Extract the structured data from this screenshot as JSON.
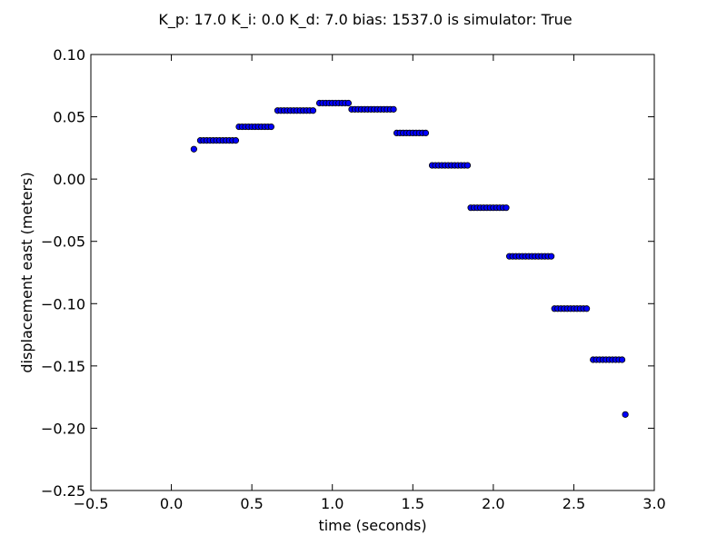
{
  "chart_data": {
    "type": "scatter",
    "title": "K_p: 17.0 K_i: 0.0 K_d: 7.0 bias: 1537.0 is simulator: True",
    "xlabel": "time (seconds)",
    "ylabel": "displacement east (meters)",
    "xlim": [
      -0.5,
      3.0
    ],
    "ylim": [
      -0.25,
      0.1
    ],
    "xticks": [
      -0.5,
      0.0,
      0.5,
      1.0,
      1.5,
      2.0,
      2.5,
      3.0
    ],
    "xtick_labels": [
      "−0.5",
      "0.0",
      "0.5",
      "1.0",
      "1.5",
      "2.0",
      "2.5",
      "3.0"
    ],
    "yticks": [
      -0.25,
      -0.2,
      -0.15,
      -0.1,
      -0.05,
      0.0,
      0.05,
      0.1
    ],
    "ytick_labels": [
      "−0.25",
      "−0.20",
      "−0.15",
      "−0.10",
      "−0.05",
      "0.00",
      "0.05",
      "0.10"
    ],
    "grid": false,
    "marker_color": "#0000ff",
    "marker_edge_color": "#000000",
    "series": [
      {
        "x": [
          0.14,
          0.18,
          0.2,
          0.22,
          0.24,
          0.26,
          0.28,
          0.3,
          0.32,
          0.34,
          0.36,
          0.38,
          0.4,
          0.42,
          0.44,
          0.46,
          0.48,
          0.5,
          0.52,
          0.54,
          0.56,
          0.58,
          0.6,
          0.62,
          0.66,
          0.68,
          0.7,
          0.72,
          0.74,
          0.76,
          0.78,
          0.8,
          0.82,
          0.84,
          0.86,
          0.88,
          0.92,
          0.94,
          0.96,
          0.98,
          1.0,
          1.02,
          1.04,
          1.06,
          1.08,
          1.1,
          1.12,
          1.14,
          1.16,
          1.18,
          1.2,
          1.22,
          1.24,
          1.26,
          1.28,
          1.3,
          1.32,
          1.34,
          1.36,
          1.38,
          1.4,
          1.42,
          1.44,
          1.46,
          1.48,
          1.5,
          1.52,
          1.54,
          1.56,
          1.58,
          1.62,
          1.64,
          1.66,
          1.68,
          1.7,
          1.72,
          1.74,
          1.76,
          1.78,
          1.8,
          1.82,
          1.84,
          1.86,
          1.88,
          1.9,
          1.92,
          1.94,
          1.96,
          1.98,
          2.0,
          2.02,
          2.04,
          2.06,
          2.08,
          2.1,
          2.12,
          2.14,
          2.16,
          2.18,
          2.2,
          2.22,
          2.24,
          2.26,
          2.28,
          2.3,
          2.32,
          2.34,
          2.36,
          2.38,
          2.4,
          2.42,
          2.44,
          2.46,
          2.48,
          2.5,
          2.52,
          2.54,
          2.56,
          2.58,
          2.62,
          2.64,
          2.66,
          2.68,
          2.7,
          2.72,
          2.74,
          2.76,
          2.78,
          2.8,
          2.82
        ],
        "y": [
          0.024,
          0.031,
          0.031,
          0.031,
          0.031,
          0.031,
          0.031,
          0.031,
          0.031,
          0.031,
          0.031,
          0.031,
          0.031,
          0.042,
          0.042,
          0.042,
          0.042,
          0.042,
          0.042,
          0.042,
          0.042,
          0.042,
          0.042,
          0.042,
          0.055,
          0.055,
          0.055,
          0.055,
          0.055,
          0.055,
          0.055,
          0.055,
          0.055,
          0.055,
          0.055,
          0.055,
          0.061,
          0.061,
          0.061,
          0.061,
          0.061,
          0.061,
          0.061,
          0.061,
          0.061,
          0.061,
          0.056,
          0.056,
          0.056,
          0.056,
          0.056,
          0.056,
          0.056,
          0.056,
          0.056,
          0.056,
          0.056,
          0.056,
          0.056,
          0.056,
          0.037,
          0.037,
          0.037,
          0.037,
          0.037,
          0.037,
          0.037,
          0.037,
          0.037,
          0.037,
          0.011,
          0.011,
          0.011,
          0.011,
          0.011,
          0.011,
          0.011,
          0.011,
          0.011,
          0.011,
          0.011,
          0.011,
          -0.023,
          -0.023,
          -0.023,
          -0.023,
          -0.023,
          -0.023,
          -0.023,
          -0.023,
          -0.023,
          -0.023,
          -0.023,
          -0.023,
          -0.062,
          -0.062,
          -0.062,
          -0.062,
          -0.062,
          -0.062,
          -0.062,
          -0.062,
          -0.062,
          -0.062,
          -0.062,
          -0.062,
          -0.062,
          -0.062,
          -0.104,
          -0.104,
          -0.104,
          -0.104,
          -0.104,
          -0.104,
          -0.104,
          -0.104,
          -0.104,
          -0.104,
          -0.104,
          -0.145,
          -0.145,
          -0.145,
          -0.145,
          -0.145,
          -0.145,
          -0.145,
          -0.145,
          -0.145,
          -0.145,
          -0.189
        ]
      }
    ]
  }
}
